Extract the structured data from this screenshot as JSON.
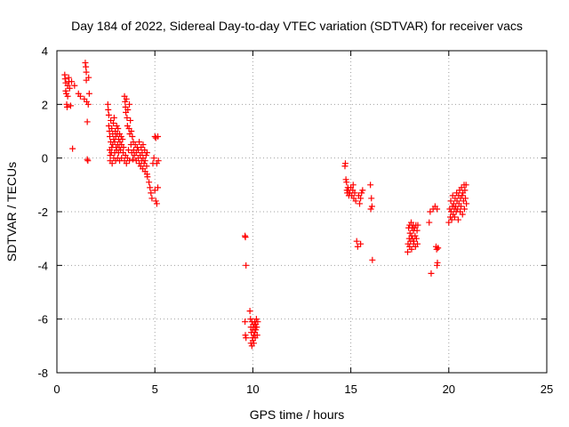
{
  "chart_data": {
    "type": "scatter",
    "title": "Day 184 of 2022, Sidereal Day-to-day VTEC variation (SDTVAR) for receiver vacs",
    "xlabel": "GPS time / hours",
    "ylabel": "SDTVAR / TECUs",
    "xlim": [
      0,
      25
    ],
    "ylim": [
      -8,
      4
    ],
    "xticks": [
      0,
      5,
      10,
      15,
      20,
      25
    ],
    "yticks": [
      -8,
      -6,
      -4,
      -2,
      0,
      2,
      4
    ],
    "grid": true,
    "marker": "+",
    "color": "#ff0000",
    "series": [
      {
        "name": "SDTVAR",
        "points": [
          [
            0.4,
            3.1
          ],
          [
            0.42,
            2.95
          ],
          [
            0.45,
            2.8
          ],
          [
            0.45,
            2.5
          ],
          [
            0.48,
            2.4
          ],
          [
            0.5,
            2.0
          ],
          [
            0.52,
            1.9
          ],
          [
            0.55,
            2.7
          ],
          [
            0.55,
            2.3
          ],
          [
            0.6,
            3.0
          ],
          [
            0.62,
            2.85
          ],
          [
            0.65,
            2.6
          ],
          [
            0.7,
            1.95
          ],
          [
            0.75,
            2.85
          ],
          [
            0.8,
            0.35
          ],
          [
            0.9,
            2.7
          ],
          [
            1.1,
            2.4
          ],
          [
            1.2,
            2.3
          ],
          [
            1.4,
            2.2
          ],
          [
            1.45,
            3.55
          ],
          [
            1.48,
            3.4
          ],
          [
            1.5,
            3.2
          ],
          [
            1.5,
            2.9
          ],
          [
            1.52,
            2.1
          ],
          [
            1.55,
            1.35
          ],
          [
            1.55,
            -0.05
          ],
          [
            1.58,
            -0.1
          ],
          [
            1.6,
            2.0
          ],
          [
            1.62,
            3.0
          ],
          [
            1.65,
            2.4
          ],
          [
            2.6,
            2.0
          ],
          [
            2.62,
            1.8
          ],
          [
            2.65,
            1.6
          ],
          [
            2.65,
            1.2
          ],
          [
            2.68,
            1.0
          ],
          [
            2.7,
            0.8
          ],
          [
            2.7,
            0.3
          ],
          [
            2.72,
            0.1
          ],
          [
            2.72,
            -0.1
          ],
          [
            2.75,
            1.4
          ],
          [
            2.75,
            0.6
          ],
          [
            2.78,
            0.2
          ],
          [
            2.8,
            1.1
          ],
          [
            2.8,
            0.4
          ],
          [
            2.82,
            -0.2
          ],
          [
            2.85,
            0.9
          ],
          [
            2.85,
            0.5
          ],
          [
            2.88,
            1.3
          ],
          [
            2.9,
            0.7
          ],
          [
            2.9,
            0.0
          ],
          [
            2.92,
            1.5
          ],
          [
            2.95,
            0.6
          ],
          [
            2.95,
            0.2
          ],
          [
            2.98,
            1.0
          ],
          [
            3.0,
            0.8
          ],
          [
            3.0,
            -0.1
          ],
          [
            3.02,
            0.4
          ],
          [
            3.05,
            1.2
          ],
          [
            3.05,
            0.3
          ],
          [
            3.08,
            0.9
          ],
          [
            3.1,
            0.5
          ],
          [
            3.1,
            0.0
          ],
          [
            3.12,
            1.1
          ],
          [
            3.15,
            0.7
          ],
          [
            3.15,
            0.2
          ],
          [
            3.18,
            0.4
          ],
          [
            3.2,
            0.9
          ],
          [
            3.2,
            -0.1
          ],
          [
            3.22,
            0.6
          ],
          [
            3.25,
            0.3
          ],
          [
            3.28,
            0.8
          ],
          [
            3.3,
            0.5
          ],
          [
            3.3,
            0.0
          ],
          [
            3.35,
            0.7
          ],
          [
            3.38,
            0.2
          ],
          [
            3.4,
            0.4
          ],
          [
            3.45,
            2.3
          ],
          [
            3.45,
            -0.1
          ],
          [
            3.48,
            2.1
          ],
          [
            3.5,
            1.9
          ],
          [
            3.5,
            0.1
          ],
          [
            3.52,
            1.7
          ],
          [
            3.55,
            2.2
          ],
          [
            3.55,
            -0.2
          ],
          [
            3.58,
            1.5
          ],
          [
            3.6,
            1.2
          ],
          [
            3.6,
            0.0
          ],
          [
            3.62,
            1.8
          ],
          [
            3.65,
            0.3
          ],
          [
            3.68,
            1.1
          ],
          [
            3.7,
            2.0
          ],
          [
            3.7,
            -0.1
          ],
          [
            3.72,
            0.9
          ],
          [
            3.75,
            1.4
          ],
          [
            3.78,
            0.5
          ],
          [
            3.8,
            1.0
          ],
          [
            3.82,
            0.2
          ],
          [
            3.85,
            0.8
          ],
          [
            3.88,
            -0.05
          ],
          [
            3.9,
            0.6
          ],
          [
            3.92,
            0.3
          ],
          [
            3.95,
            0.1
          ],
          [
            4.0,
            0.5
          ],
          [
            4.05,
            0.2
          ],
          [
            4.05,
            -0.1
          ],
          [
            4.1,
            0.4
          ],
          [
            4.15,
            0.0
          ],
          [
            4.15,
            0.3
          ],
          [
            4.2,
            -0.2
          ],
          [
            4.2,
            0.6
          ],
          [
            4.25,
            0.1
          ],
          [
            4.28,
            -0.3
          ],
          [
            4.3,
            0.4
          ],
          [
            4.32,
            -0.1
          ],
          [
            4.35,
            0.2
          ],
          [
            4.38,
            -0.4
          ],
          [
            4.4,
            0.0
          ],
          [
            4.4,
            0.5
          ],
          [
            4.45,
            -0.2
          ],
          [
            4.48,
            0.3
          ],
          [
            4.5,
            -0.5
          ],
          [
            4.5,
            -0.1
          ],
          [
            4.55,
            0.1
          ],
          [
            4.58,
            -0.3
          ],
          [
            4.6,
            -0.6
          ],
          [
            4.6,
            0.2
          ],
          [
            4.62,
            -0.7
          ],
          [
            4.7,
            -0.9
          ],
          [
            4.75,
            -1.1
          ],
          [
            4.8,
            -1.3
          ],
          [
            4.85,
            -1.5
          ],
          [
            4.9,
            -0.2
          ],
          [
            4.95,
            0.0
          ],
          [
            5.0,
            0.8
          ],
          [
            5.0,
            -1.2
          ],
          [
            5.05,
            -1.6
          ],
          [
            5.05,
            0.75
          ],
          [
            5.1,
            -1.7
          ],
          [
            5.1,
            -0.2
          ],
          [
            5.15,
            0.8
          ],
          [
            5.15,
            -1.1
          ],
          [
            5.18,
            -0.1
          ],
          [
            9.6,
            -2.9
          ],
          [
            9.62,
            -2.95
          ],
          [
            9.65,
            -4.0
          ],
          [
            9.6,
            -6.1
          ],
          [
            9.62,
            -6.6
          ],
          [
            9.65,
            -6.7
          ],
          [
            9.85,
            -5.7
          ],
          [
            9.88,
            -6.0
          ],
          [
            9.9,
            -6.3
          ],
          [
            9.9,
            -6.9
          ],
          [
            9.92,
            -6.5
          ],
          [
            9.95,
            -6.1
          ],
          [
            9.95,
            -7.0
          ],
          [
            9.98,
            -6.7
          ],
          [
            10.0,
            -6.4
          ],
          [
            10.0,
            -6.8
          ],
          [
            10.02,
            -6.2
          ],
          [
            10.05,
            -6.6
          ],
          [
            10.05,
            -6.9
          ],
          [
            10.08,
            -6.3
          ],
          [
            10.1,
            -6.5
          ],
          [
            10.1,
            -6.1
          ],
          [
            10.12,
            -6.7
          ],
          [
            10.15,
            -6.4
          ],
          [
            10.15,
            -6.2
          ],
          [
            10.18,
            -6.0
          ],
          [
            10.2,
            -6.3
          ],
          [
            10.22,
            -6.6
          ],
          [
            10.25,
            -6.1
          ],
          [
            14.7,
            -0.3
          ],
          [
            14.72,
            -0.2
          ],
          [
            14.75,
            -0.8
          ],
          [
            14.78,
            -0.9
          ],
          [
            14.8,
            -1.2
          ],
          [
            14.82,
            -1.3
          ],
          [
            14.85,
            -1.1
          ],
          [
            14.88,
            -1.2
          ],
          [
            14.9,
            -1.4
          ],
          [
            14.95,
            -1.3
          ],
          [
            15.0,
            -1.1
          ],
          [
            15.05,
            -1.4
          ],
          [
            15.1,
            -1.2
          ],
          [
            15.12,
            -1.0
          ],
          [
            15.15,
            -1.5
          ],
          [
            15.2,
            -1.3
          ],
          [
            15.25,
            -1.6
          ],
          [
            15.3,
            -3.1
          ],
          [
            15.35,
            -3.3
          ],
          [
            15.4,
            -1.4
          ],
          [
            15.45,
            -1.7
          ],
          [
            15.5,
            -3.2
          ],
          [
            15.5,
            -1.5
          ],
          [
            15.55,
            -1.3
          ],
          [
            15.6,
            -1.2
          ],
          [
            16.0,
            -1.0
          ],
          [
            16.02,
            -1.9
          ],
          [
            16.05,
            -1.5
          ],
          [
            16.08,
            -1.8
          ],
          [
            16.1,
            -3.8
          ],
          [
            17.9,
            -3.5
          ],
          [
            17.92,
            -3.2
          ],
          [
            17.95,
            -2.6
          ],
          [
            17.98,
            -3.0
          ],
          [
            18.0,
            -2.5
          ],
          [
            18.0,
            -3.3
          ],
          [
            18.02,
            -2.8
          ],
          [
            18.05,
            -3.1
          ],
          [
            18.08,
            -2.4
          ],
          [
            18.1,
            -2.9
          ],
          [
            18.1,
            -3.4
          ],
          [
            18.12,
            -2.6
          ],
          [
            18.15,
            -3.0
          ],
          [
            18.18,
            -2.5
          ],
          [
            18.2,
            -3.2
          ],
          [
            18.2,
            -2.7
          ],
          [
            18.22,
            -3.1
          ],
          [
            18.25,
            -2.6
          ],
          [
            18.28,
            -2.9
          ],
          [
            18.3,
            -3.3
          ],
          [
            18.32,
            -2.5
          ],
          [
            18.35,
            -3.0
          ],
          [
            18.38,
            -2.7
          ],
          [
            18.4,
            -3.2
          ],
          [
            18.42,
            -2.5
          ],
          [
            19.0,
            -2.4
          ],
          [
            19.05,
            -2.0
          ],
          [
            19.1,
            -4.3
          ],
          [
            19.2,
            -1.9
          ],
          [
            19.3,
            -1.8
          ],
          [
            19.35,
            -3.3
          ],
          [
            19.38,
            -3.4
          ],
          [
            19.4,
            -4.0
          ],
          [
            19.4,
            -1.9
          ],
          [
            19.42,
            -3.9
          ],
          [
            19.45,
            -3.35
          ],
          [
            20.0,
            -2.4
          ],
          [
            20.05,
            -1.9
          ],
          [
            20.08,
            -2.2
          ],
          [
            20.1,
            -1.6
          ],
          [
            20.12,
            -2.0
          ],
          [
            20.15,
            -2.3
          ],
          [
            20.18,
            -1.8
          ],
          [
            20.2,
            -1.4
          ],
          [
            20.22,
            -2.1
          ],
          [
            20.25,
            -1.7
          ],
          [
            20.28,
            -1.9
          ],
          [
            20.3,
            -2.2
          ],
          [
            20.32,
            -1.5
          ],
          [
            20.35,
            -1.8
          ],
          [
            20.38,
            -2.0
          ],
          [
            20.4,
            -1.3
          ],
          [
            20.42,
            -1.6
          ],
          [
            20.45,
            -1.9
          ],
          [
            20.48,
            -2.3
          ],
          [
            20.5,
            -1.4
          ],
          [
            20.52,
            -1.7
          ],
          [
            20.55,
            -1.2
          ],
          [
            20.58,
            -2.0
          ],
          [
            20.6,
            -1.5
          ],
          [
            20.62,
            -1.8
          ],
          [
            20.65,
            -1.1
          ],
          [
            20.68,
            -1.4
          ],
          [
            20.7,
            -2.1
          ],
          [
            20.72,
            -1.3
          ],
          [
            20.75,
            -1.6
          ],
          [
            20.78,
            -1.0
          ],
          [
            20.8,
            -1.9
          ],
          [
            20.82,
            -1.2
          ],
          [
            20.85,
            -1.5
          ],
          [
            20.88,
            -1.0
          ],
          [
            20.9,
            -1.7
          ]
        ]
      }
    ]
  }
}
